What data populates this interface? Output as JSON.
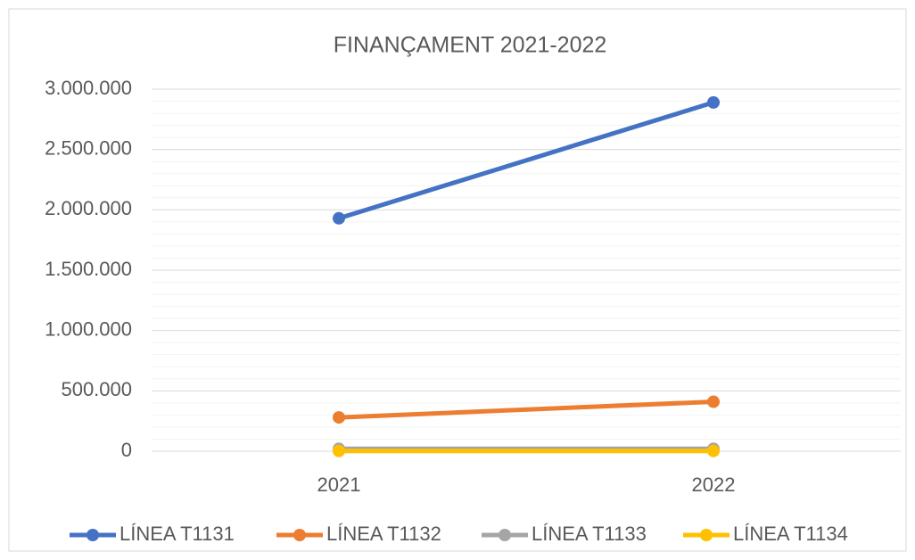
{
  "chart_data": {
    "type": "line",
    "title": "FINANÇAMENT 2021-2022",
    "categories": [
      "2021",
      "2022"
    ],
    "series": [
      {
        "name": "LÍNEA T1131",
        "color": "#4472c4",
        "values": [
          1930000,
          2890000
        ]
      },
      {
        "name": "LÍNEA T1132",
        "color": "#ed7d31",
        "values": [
          280000,
          410000
        ]
      },
      {
        "name": "LÍNEA T1133",
        "color": "#a5a5a5",
        "values": [
          20000,
          20000
        ]
      },
      {
        "name": "LÍNEA T1134",
        "color": "#ffc000",
        "values": [
          2000,
          2000
        ]
      }
    ],
    "ylim": [
      0,
      3000000
    ],
    "yticks": [
      0,
      {
        "value": 500000,
        "label": "500.000"
      },
      {
        "value": 1000000,
        "label": "1.000.000"
      },
      {
        "value": 1500000,
        "label": "1.500.000"
      },
      {
        "value": 2000000,
        "label": "2.000.000"
      },
      {
        "value": 2500000,
        "label": "2.500.000"
      },
      {
        "value": 3000000,
        "label": "3.000.000"
      }
    ],
    "grid": true,
    "legend": "bottom"
  }
}
